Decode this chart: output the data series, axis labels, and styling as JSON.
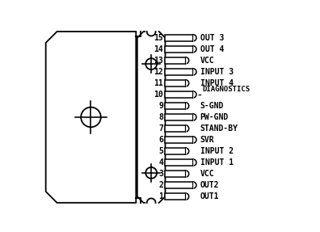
{
  "bg_color": "#ffffff",
  "ec": "#000000",
  "pins": [
    {
      "num": 15,
      "label": "OUT 3",
      "long": true
    },
    {
      "num": 14,
      "label": "OUT 4",
      "long": true
    },
    {
      "num": 13,
      "label": "VCC",
      "long": false
    },
    {
      "num": 12,
      "label": "INPUT 3",
      "long": true
    },
    {
      "num": 11,
      "label": "INPUT 4",
      "long": false
    },
    {
      "num": 10,
      "label": "DIAGNOSTICS",
      "long": true,
      "diag": true
    },
    {
      "num": 9,
      "label": "S-GND",
      "long": false
    },
    {
      "num": 8,
      "label": "PW-GND",
      "long": true
    },
    {
      "num": 7,
      "label": "STAND-BY",
      "long": false
    },
    {
      "num": 6,
      "label": "SVR",
      "long": true
    },
    {
      "num": 5,
      "label": "INPUT 2",
      "long": false
    },
    {
      "num": 4,
      "label": "INPUT 1",
      "long": true
    },
    {
      "num": 3,
      "label": "VCC",
      "long": false
    },
    {
      "num": 2,
      "label": "OUT2",
      "long": true
    },
    {
      "num": 1,
      "label": "OUT1",
      "long": false
    }
  ],
  "lw": 1.3,
  "font_size": 7.0,
  "num_font_size": 7.0
}
